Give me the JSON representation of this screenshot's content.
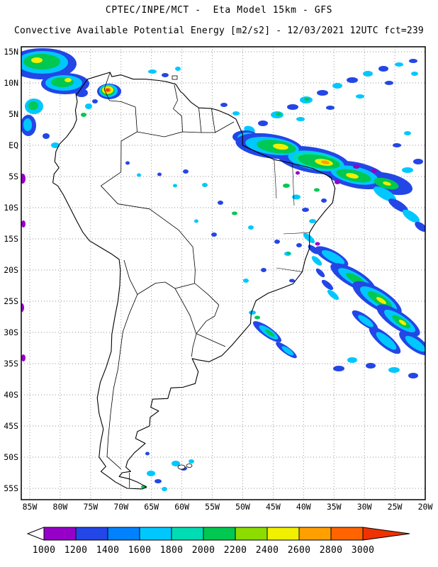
{
  "header": {
    "line1": "CPTEC/INPE/MCT -  Eta Model 15km - GFS",
    "line2": "Convective Available Potential Energy [m2/s2] - 12/03/2021 12UTC fct=239"
  },
  "map": {
    "lat_labels": [
      "15N",
      "10N",
      "5N",
      "EQ",
      "5S",
      "10S",
      "15S",
      "20S",
      "25S",
      "30S",
      "35S",
      "40S",
      "45S",
      "50S",
      "55S"
    ],
    "lon_labels": [
      "85W",
      "80W",
      "75W",
      "70W",
      "65W",
      "60W",
      "55W",
      "50W",
      "45W",
      "40W",
      "35W",
      "30W",
      "25W",
      "20W"
    ]
  },
  "legend": {
    "values": [
      "1000",
      "1200",
      "1400",
      "1600",
      "1800",
      "2000",
      "2200",
      "2400",
      "2600",
      "2800",
      "3000"
    ],
    "colors": [
      "#9600c8",
      "#2346e6",
      "#0082ff",
      "#00c8ff",
      "#00dcb4",
      "#00c850",
      "#8cdc00",
      "#f0f000",
      "#ffa000",
      "#ff6400"
    ],
    "arrow_left_color": "#ffffff",
    "arrow_right_color": "#f03200"
  }
}
